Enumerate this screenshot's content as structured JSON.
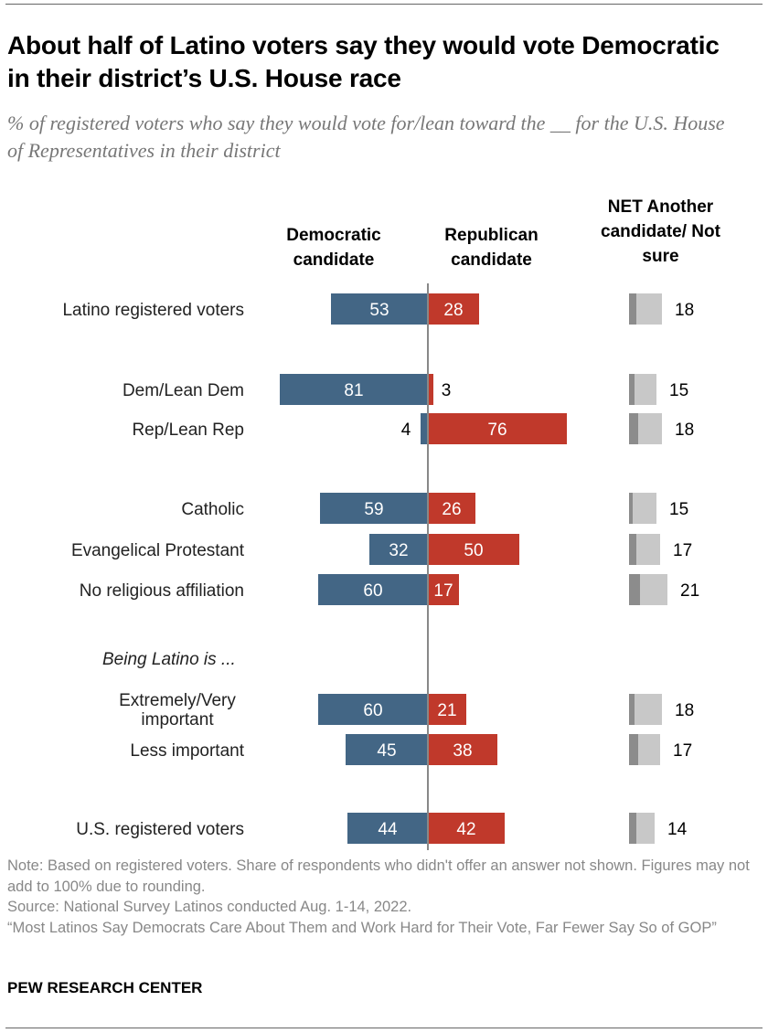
{
  "title": "About half of Latino voters say they would vote Democratic in their district’s U.S. House race",
  "subtitle": "% of registered voters who say they would vote for/lean toward the __ for the U.S. House of Representatives in their district",
  "column_headers": {
    "dem": "Democratic candidate",
    "rep": "Republican candidate",
    "net": "NET Another candidate/ Not sure"
  },
  "colors": {
    "dem": "#436685",
    "rep": "#c0392b",
    "another": "#8c8c8c",
    "not_sure": "#c8c8c8",
    "axis": "#888888"
  },
  "chart_data": {
    "type": "bar",
    "orientation": "horizontal diverging",
    "series": [
      {
        "name": "Democratic candidate",
        "values": [
          53,
          81,
          4,
          59,
          32,
          60,
          60,
          45,
          44
        ]
      },
      {
        "name": "Republican candidate",
        "values": [
          28,
          3,
          76,
          26,
          50,
          17,
          21,
          38,
          42
        ]
      },
      {
        "name": "NET Another candidate/Not sure",
        "values": [
          18,
          15,
          18,
          15,
          17,
          21,
          18,
          17,
          14
        ]
      }
    ],
    "categories": [
      "Latino registered voters",
      "Dem/Lean Dem",
      "Rep/Lean Rep",
      "Catholic",
      "Evangelical Protestant",
      "No religious affiliation",
      "Extremely/Very important",
      "Less important",
      "U.S. registered voters"
    ],
    "net_split_estimate": {
      "another_candidate": [
        4,
        3,
        5,
        2,
        4,
        6,
        3,
        5,
        4
      ]
    },
    "group_label": "Being Latino is ..."
  },
  "notes": [
    "Note: Based on registered voters. Share of respondents who didn't offer an answer not shown. Figures may not add to 100% due to rounding.",
    "Source: National Survey Latinos conducted Aug. 1-14, 2022.",
    "“Most Latinos Say Democrats Care About Them and Work Hard for Their Vote, Far Fewer Say So of GOP”"
  ],
  "brand": "PEW RESEARCH CENTER"
}
